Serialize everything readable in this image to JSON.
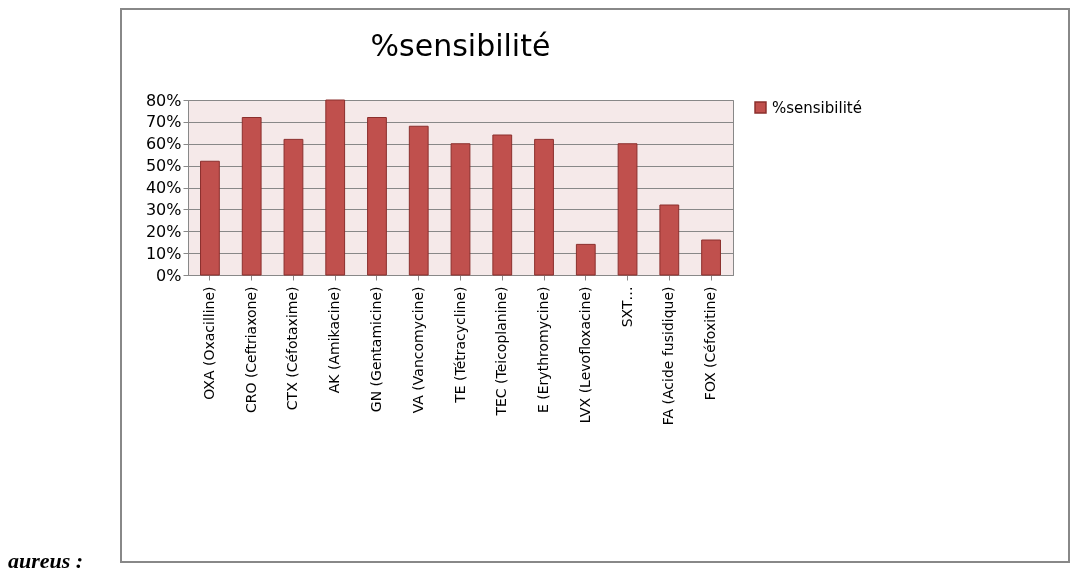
{
  "chart_data": {
    "type": "bar",
    "title": "%sensibilité",
    "categories": [
      "OXA   (Oxacilline)",
      "CRO (Ceftriaxone)",
      "CTX (Céfotaxime)",
      "AK (Amikacine)",
      "GN (Gentamicine)",
      "VA (Vancomycine)",
      "TE (Tétracycline)",
      "TEC (Teicoplanine)",
      "E (Erythromycine)",
      "LVX (Levofloxacine)",
      "SXT…",
      "FA (Acide fusidique)",
      "FOX (Céfoxitine)"
    ],
    "series": [
      {
        "name": "%sensibilité",
        "color": "#c0504d",
        "values": [
          52,
          72,
          62,
          80,
          72,
          68,
          60,
          64,
          62,
          14,
          60,
          32,
          16
        ]
      }
    ],
    "ylim": [
      0,
      80
    ],
    "yticks": [
      {
        "value": 0,
        "label": "0%"
      },
      {
        "value": 10,
        "label": "10%"
      },
      {
        "value": 20,
        "label": "20%"
      },
      {
        "value": 30,
        "label": "30%"
      },
      {
        "value": 40,
        "label": "40%"
      },
      {
        "value": 50,
        "label": "50%"
      },
      {
        "value": 60,
        "label": "60%"
      },
      {
        "value": 70,
        "label": "70%"
      },
      {
        "value": 80,
        "label": "80%"
      }
    ],
    "grid": "y",
    "legend": "right",
    "annotations": [
      "aureus :"
    ]
  }
}
